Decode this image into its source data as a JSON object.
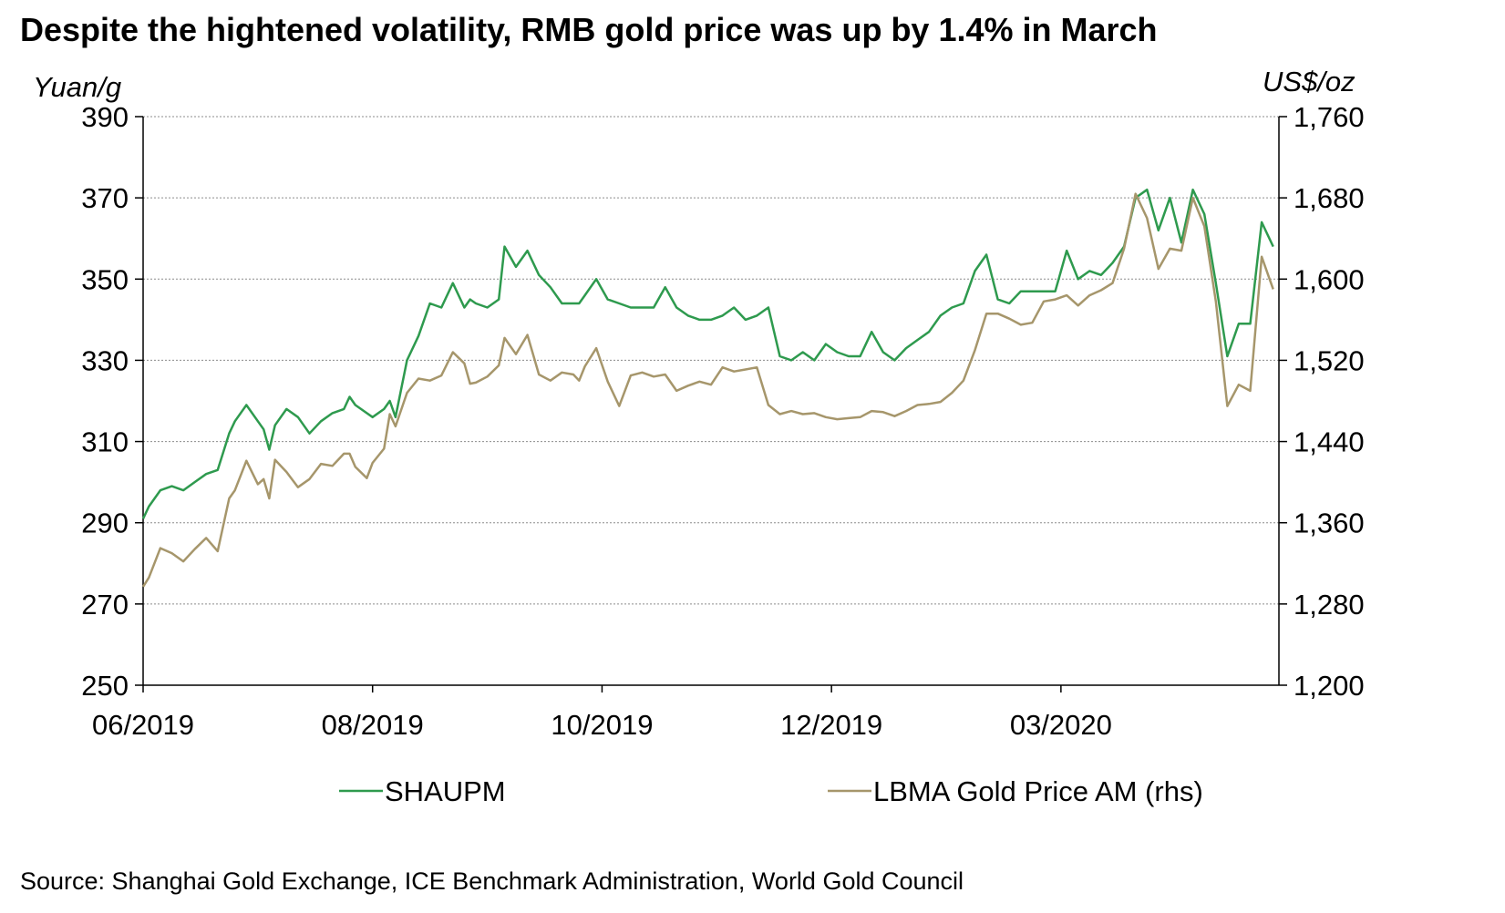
{
  "title": "Despite the hightened volatility, RMB gold price was up by 1.4% in March",
  "source": "Source: Shanghai Gold Exchange, ICE Benchmark Administration, World Gold Council",
  "colors": {
    "SHAUPM": "#2e9a4e",
    "LBMA": "#a6966b",
    "grid": "#8c8c8c",
    "axis": "#000000"
  },
  "chart_data": {
    "type": "line",
    "title": "Despite the hightened volatility, RMB gold price was up by 1.4% in March",
    "y_left_label": "Yuan/g",
    "y_right_label": "US$/oz",
    "y_left_lim": [
      250,
      390
    ],
    "y_right_lim": [
      1200,
      1760
    ],
    "y_left_ticks": [
      "250",
      "270",
      "290",
      "310",
      "330",
      "350",
      "370",
      "390"
    ],
    "y_right_ticks": [
      "1,200",
      "1,280",
      "1,360",
      "1,440",
      "1,520",
      "1,600",
      "1,680",
      "1,760"
    ],
    "x_ticks": [
      "06/2019",
      "08/2019",
      "10/2019",
      "12/2019",
      "03/2020"
    ],
    "grid": "horizontal dotted",
    "legend_position": "bottom",
    "x_range_months": [
      0,
      9.9
    ],
    "series": [
      {
        "name": "SHAUPM",
        "axis": "left",
        "x": [
          0,
          0.05,
          0.15,
          0.25,
          0.35,
          0.45,
          0.55,
          0.65,
          0.75,
          0.8,
          0.9,
          1.0,
          1.05,
          1.1,
          1.15,
          1.25,
          1.35,
          1.45,
          1.55,
          1.65,
          1.75,
          1.8,
          1.85,
          1.95,
          2.0,
          2.1,
          2.15,
          2.2,
          2.3,
          2.4,
          2.5,
          2.6,
          2.7,
          2.8,
          2.85,
          2.9,
          3.0,
          3.1,
          3.15,
          3.25,
          3.35,
          3.45,
          3.55,
          3.65,
          3.75,
          3.8,
          3.85,
          3.95,
          4.05,
          4.15,
          4.25,
          4.35,
          4.45,
          4.55,
          4.65,
          4.75,
          4.85,
          4.95,
          5.05,
          5.15,
          5.25,
          5.35,
          5.45,
          5.55,
          5.65,
          5.75,
          5.85,
          5.95,
          6.05,
          6.15,
          6.25,
          6.35,
          6.45,
          6.55,
          6.65,
          6.75,
          6.85,
          6.95,
          7.05,
          7.15,
          7.25,
          7.35,
          7.45,
          7.55,
          7.65,
          7.75,
          7.85,
          7.95,
          8.05,
          8.15,
          8.25,
          8.35,
          8.45,
          8.55,
          8.65,
          8.75,
          8.85,
          8.95,
          9.05,
          9.15,
          9.25,
          9.35,
          9.45,
          9.55,
          9.65,
          9.75,
          9.85
        ],
        "values": [
          291,
          294,
          298,
          299,
          298,
          300,
          302,
          303,
          312,
          315,
          319,
          315,
          313,
          308,
          314,
          318,
          316,
          312,
          315,
          317,
          318,
          321,
          319,
          317,
          316,
          318,
          320,
          316,
          330,
          336,
          344,
          343,
          349,
          343,
          345,
          344,
          343,
          345,
          358,
          353,
          357,
          351,
          348,
          344,
          344,
          344,
          346,
          350,
          345,
          344,
          343,
          343,
          343,
          348,
          343,
          341,
          340,
          340,
          341,
          343,
          340,
          341,
          343,
          331,
          330,
          332,
          330,
          334,
          332,
          331,
          331,
          337,
          332,
          330,
          333,
          335,
          337,
          341,
          343,
          344,
          352,
          356,
          345,
          344,
          347,
          347,
          347,
          347,
          357,
          350,
          352,
          351,
          354,
          358,
          370,
          372,
          362,
          370,
          359,
          372,
          366,
          349,
          331,
          339,
          339,
          364,
          358
        ]
      },
      {
        "name": "LBMA Gold Price AM (rhs)",
        "axis": "right",
        "x": [
          0,
          0.05,
          0.15,
          0.25,
          0.35,
          0.45,
          0.55,
          0.65,
          0.75,
          0.8,
          0.9,
          1.0,
          1.05,
          1.1,
          1.15,
          1.25,
          1.35,
          1.45,
          1.55,
          1.65,
          1.75,
          1.8,
          1.85,
          1.95,
          2.0,
          2.1,
          2.15,
          2.2,
          2.3,
          2.4,
          2.5,
          2.6,
          2.7,
          2.8,
          2.85,
          2.9,
          3.0,
          3.1,
          3.15,
          3.25,
          3.35,
          3.45,
          3.55,
          3.65,
          3.75,
          3.8,
          3.85,
          3.95,
          4.05,
          4.15,
          4.25,
          4.35,
          4.45,
          4.55,
          4.65,
          4.75,
          4.85,
          4.95,
          5.05,
          5.15,
          5.25,
          5.35,
          5.45,
          5.55,
          5.65,
          5.75,
          5.85,
          5.95,
          6.05,
          6.15,
          6.25,
          6.35,
          6.45,
          6.55,
          6.65,
          6.75,
          6.85,
          6.95,
          7.05,
          7.15,
          7.25,
          7.35,
          7.45,
          7.55,
          7.65,
          7.75,
          7.85,
          7.95,
          8.05,
          8.15,
          8.25,
          8.35,
          8.45,
          8.55,
          8.65,
          8.75,
          8.85,
          8.95,
          9.05,
          9.15,
          9.25,
          9.35,
          9.45,
          9.55,
          9.65,
          9.75,
          9.85
        ],
        "values": [
          1297,
          1306,
          1335,
          1330,
          1322,
          1334,
          1345,
          1332,
          1384,
          1392,
          1421,
          1398,
          1403,
          1384,
          1422,
          1410,
          1395,
          1403,
          1418,
          1416,
          1428,
          1428,
          1415,
          1404,
          1419,
          1433,
          1467,
          1455,
          1488,
          1502,
          1500,
          1505,
          1528,
          1517,
          1497,
          1498,
          1504,
          1515,
          1542,
          1526,
          1545,
          1506,
          1500,
          1508,
          1506,
          1500,
          1514,
          1532,
          1499,
          1475,
          1505,
          1508,
          1504,
          1506,
          1490,
          1495,
          1499,
          1496,
          1513,
          1509,
          1511,
          1513,
          1476,
          1467,
          1470,
          1467,
          1468,
          1464,
          1462,
          1463,
          1464,
          1470,
          1469,
          1465,
          1470,
          1476,
          1477,
          1479,
          1488,
          1500,
          1530,
          1566,
          1566,
          1561,
          1555,
          1557,
          1578,
          1580,
          1584,
          1574,
          1584,
          1589,
          1596,
          1630,
          1684,
          1660,
          1610,
          1630,
          1628,
          1680,
          1652,
          1578,
          1475,
          1496,
          1490,
          1622,
          1590
        ]
      }
    ]
  },
  "legend": [
    {
      "label": "SHAUPM",
      "color": "#2e9a4e"
    },
    {
      "label": "LBMA Gold Price AM (rhs)",
      "color": "#a6966b"
    }
  ]
}
